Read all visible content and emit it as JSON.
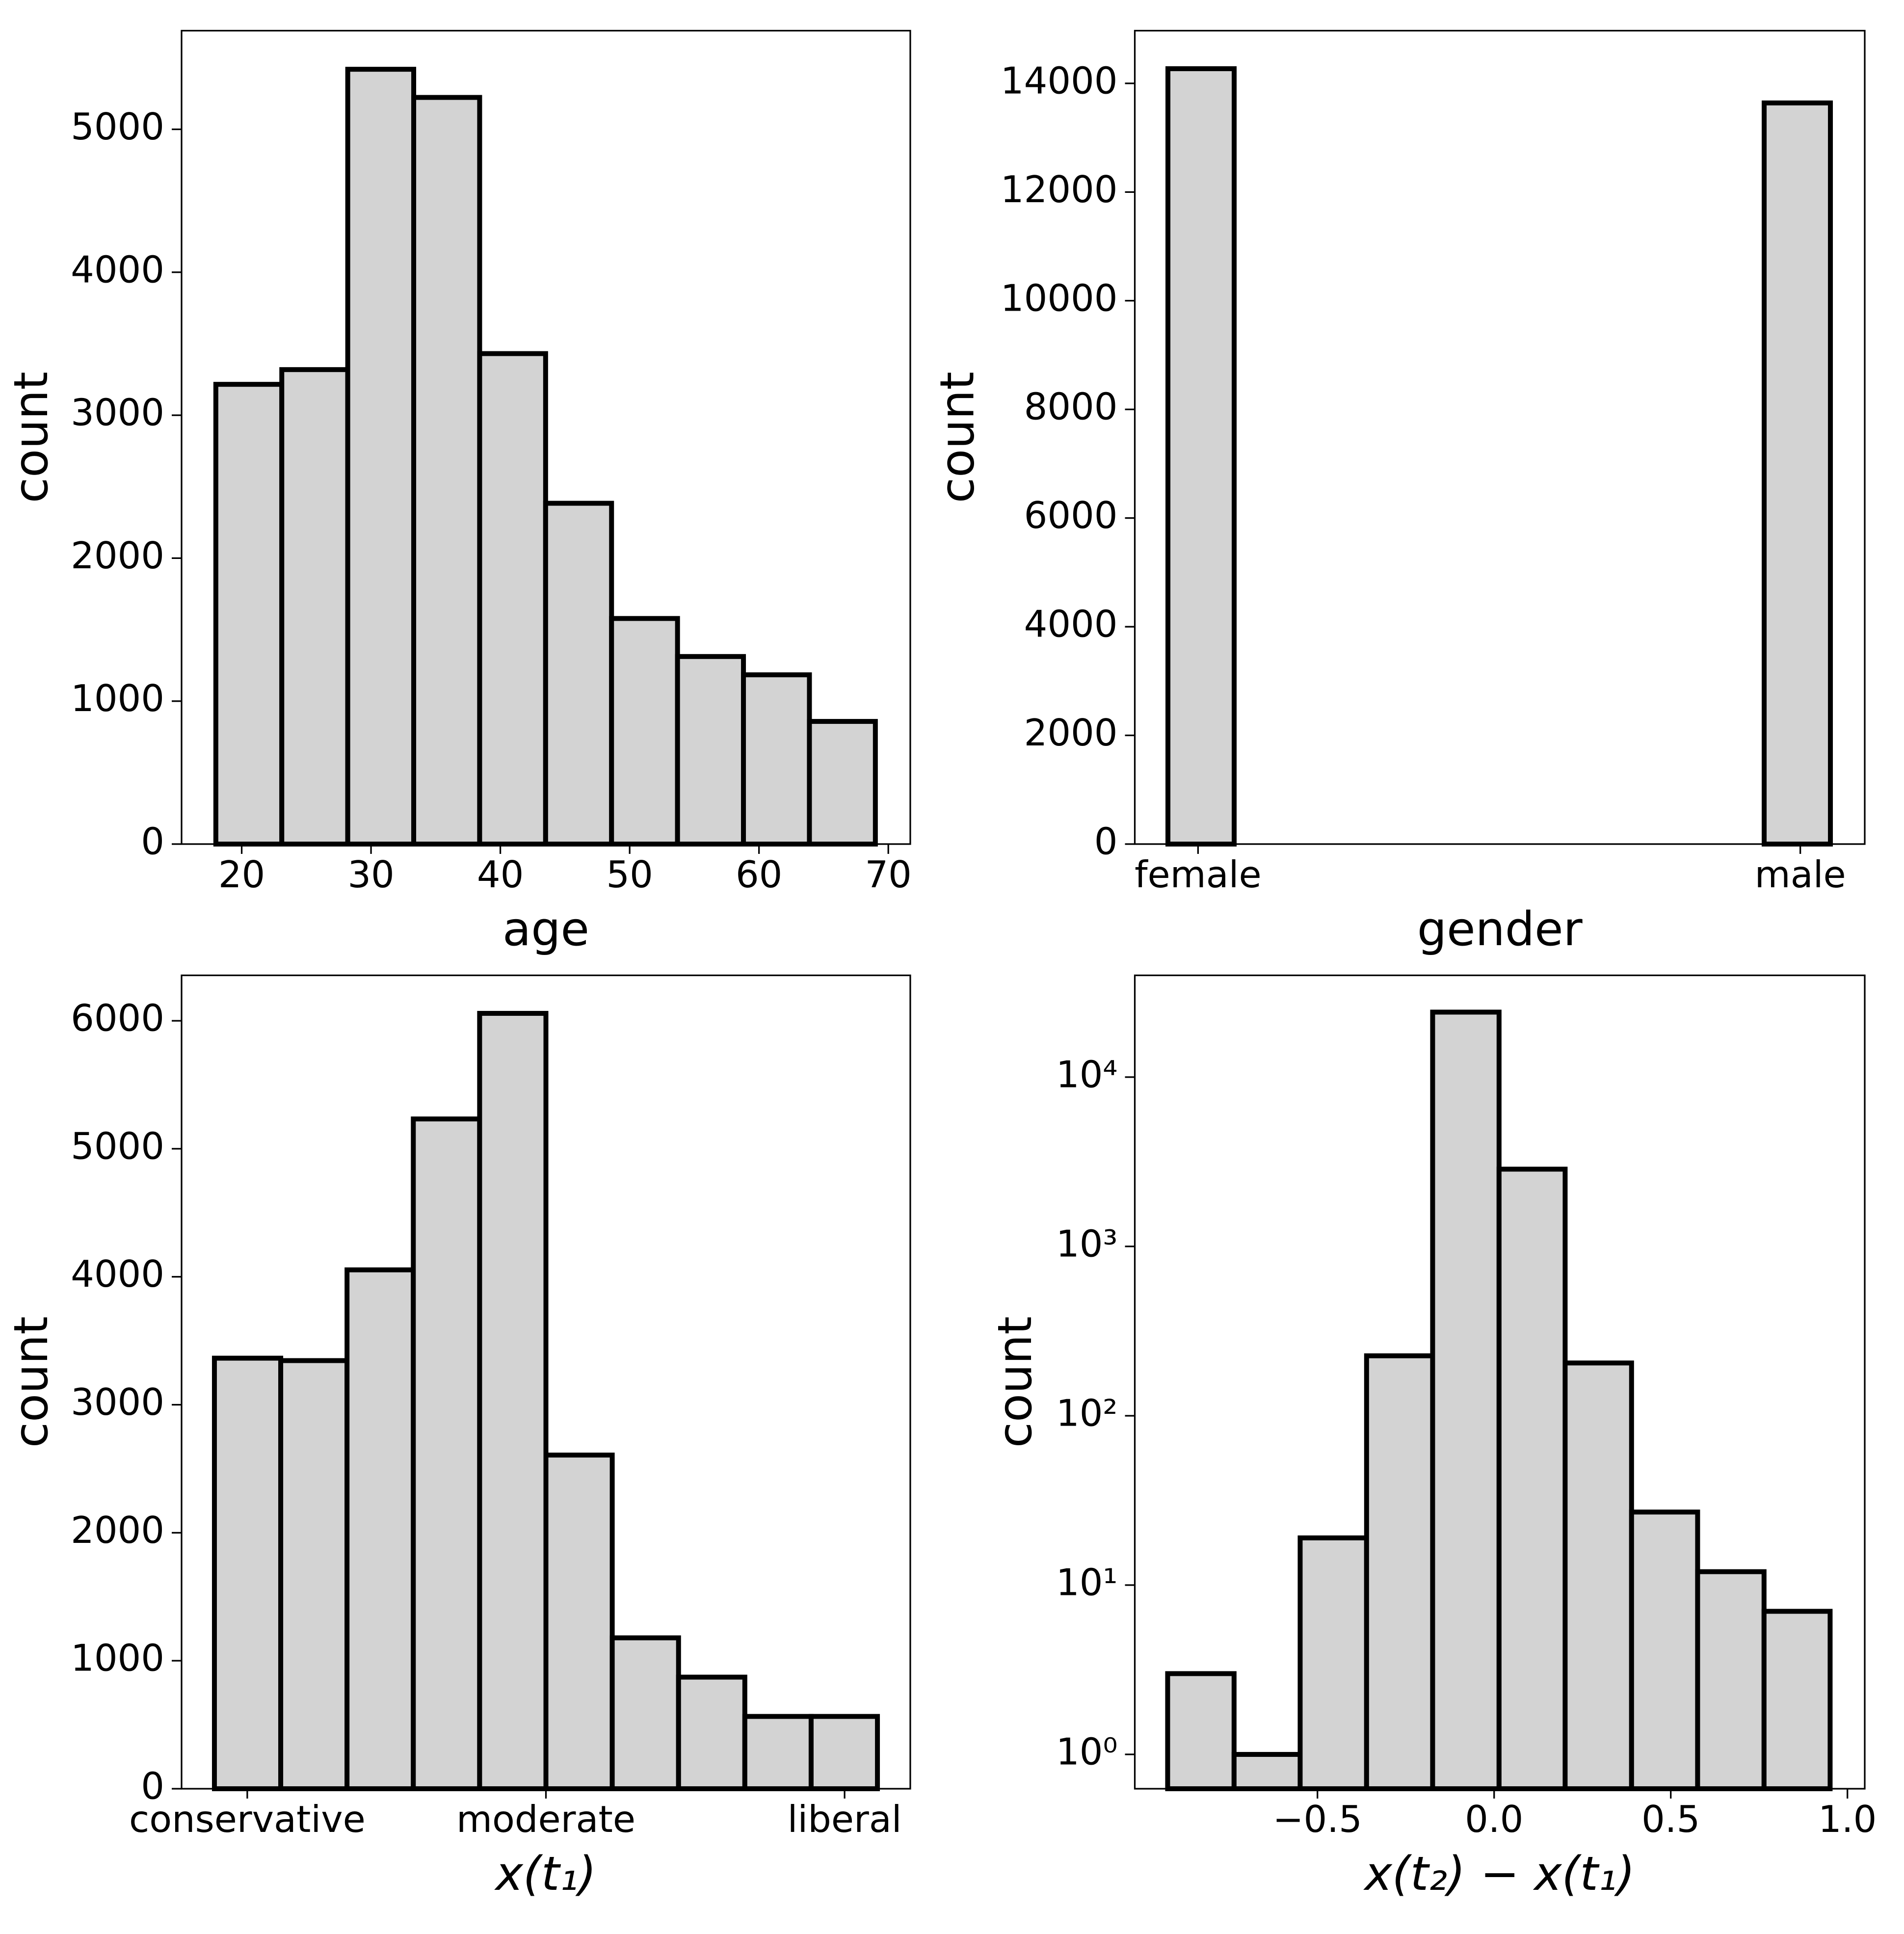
{
  "chart_data": [
    {
      "type": "histogram",
      "xlabel": "age",
      "ylabel": "count",
      "color": "#d3d3d3",
      "edgecolor": "#000000",
      "bins": [
        18,
        23.1,
        28.2,
        33.3,
        38.4,
        43.5,
        48.6,
        53.7,
        58.8,
        63.9,
        69
      ],
      "values": [
        3216,
        3319,
        5420,
        5223,
        3431,
        2384,
        1578,
        1312,
        1184,
        858
      ],
      "xlim": [
        15.35,
        71.7
      ],
      "xticks": [
        20,
        30,
        40,
        50,
        60,
        70
      ],
      "ylim": [
        0,
        5690
      ],
      "yticks": [
        0,
        1000,
        2000,
        3000,
        4000,
        5000
      ]
    },
    {
      "type": "histogram",
      "xlabel": "gender",
      "ylabel": "count",
      "color": "#d3d3d3",
      "edgecolor": "#000000",
      "bins": [
        -0.05,
        0.06,
        0.17,
        0.28,
        0.39,
        0.5,
        0.61,
        0.72,
        0.83,
        0.94,
        1.05
      ],
      "values": [
        14270,
        0,
        0,
        0,
        0,
        0,
        0,
        0,
        0,
        13640
      ],
      "xlim": [
        -0.105,
        1.107
      ],
      "xticks": [
        {
          "value": 0,
          "label": "female"
        },
        {
          "value": 1,
          "label": "male"
        }
      ],
      "ylim": [
        0,
        14970
      ],
      "yticks": [
        0,
        2000,
        4000,
        6000,
        8000,
        10000,
        12000,
        14000
      ]
    },
    {
      "type": "histogram",
      "xlabel": "x(t₁)",
      "ylabel": "count",
      "color": "#d3d3d3",
      "edgecolor": "#000000",
      "bins": [
        -1.11,
        -0.888,
        -0.666,
        -0.444,
        -0.222,
        0,
        0.222,
        0.444,
        0.666,
        0.888,
        1.11
      ],
      "values": [
        3364,
        3345,
        4054,
        5233,
        6058,
        2607,
        1179,
        872,
        565,
        565
      ],
      "xlim": [
        -1.22,
        1.22
      ],
      "xticks": [
        {
          "value": -1,
          "label": "conservative"
        },
        {
          "value": 0,
          "label": "moderate"
        },
        {
          "value": 1,
          "label": "liberal"
        }
      ],
      "ylim": [
        0,
        6355
      ],
      "yticks": [
        0,
        1000,
        2000,
        3000,
        4000,
        5000,
        6000
      ]
    },
    {
      "type": "histogram",
      "xlabel": "x(t₂) − x(t₁)",
      "ylabel": "count",
      "color": "#d3d3d3",
      "edgecolor": "#000000",
      "yscale": "log",
      "bins": [
        -0.924,
        -0.736,
        -0.549,
        -0.361,
        -0.174,
        0.014,
        0.201,
        0.389,
        0.576,
        0.764,
        0.951
      ],
      "values": [
        3,
        1,
        19,
        226,
        24200,
        2860,
        205,
        27,
        12,
        7
      ],
      "xlim": [
        -1.017,
        1.049
      ],
      "xticks": [
        {
          "value": -0.5,
          "label": "−0.5"
        },
        {
          "value": 0,
          "label": "0.0"
        },
        {
          "value": 0.5,
          "label": "0.5"
        },
        {
          "value": 1,
          "label": "1.0"
        }
      ],
      "ylim": [
        0.627,
        39900
      ],
      "yticks": [
        {
          "value": 1,
          "label": "10⁰"
        },
        {
          "value": 10,
          "label": "10¹"
        },
        {
          "value": 100,
          "label": "10²"
        },
        {
          "value": 1000,
          "label": "10³"
        },
        {
          "value": 10000,
          "label": "10⁴"
        }
      ]
    }
  ]
}
